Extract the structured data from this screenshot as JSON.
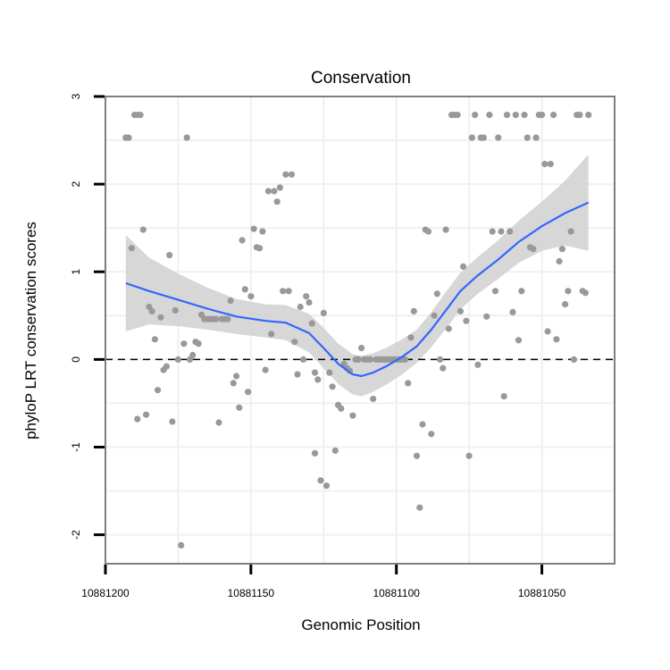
{
  "chart_data": {
    "type": "scatter",
    "title": "Conservation",
    "xlabel": "Genomic Position",
    "ylabel": "phyloP LRT conservation scores",
    "x_reversed": true,
    "xlim": [
      10881025,
      10881200
    ],
    "ylim": [
      -2.33,
      3.0
    ],
    "x_ticks": [
      10881200,
      10881150,
      10881100,
      10881050
    ],
    "x_tick_labels": [
      "10881200",
      "10881150",
      "10881100",
      "10881050"
    ],
    "y_ticks": [
      -2,
      -1,
      0,
      1,
      2,
      3
    ],
    "y_tick_labels": [
      "-2",
      "-1",
      "0",
      "1",
      "2",
      "3"
    ],
    "grid": true,
    "reference_line": {
      "y": 0,
      "style": "dashed"
    },
    "colors": {
      "points": "#999999",
      "smooth": "#3366ff",
      "band": "#d3d3d3",
      "frame": "#7f7f7f",
      "grid": "#f0f0f0"
    },
    "points": [
      {
        "x": 10881193,
        "y": 2.53
      },
      {
        "x": 10881192,
        "y": 2.53
      },
      {
        "x": 10881191,
        "y": 1.27
      },
      {
        "x": 10881190,
        "y": 2.79
      },
      {
        "x": 10881189,
        "y": 2.79
      },
      {
        "x": 10881189,
        "y": -0.68
      },
      {
        "x": 10881188,
        "y": 2.79
      },
      {
        "x": 10881187,
        "y": 1.48
      },
      {
        "x": 10881186,
        "y": -0.63
      },
      {
        "x": 10881185,
        "y": 0.6
      },
      {
        "x": 10881184,
        "y": 0.55
      },
      {
        "x": 10881183,
        "y": 0.23
      },
      {
        "x": 10881182,
        "y": -0.35
      },
      {
        "x": 10881181,
        "y": 0.48
      },
      {
        "x": 10881180,
        "y": -0.12
      },
      {
        "x": 10881179,
        "y": -0.08
      },
      {
        "x": 10881178,
        "y": 1.19
      },
      {
        "x": 10881177,
        "y": -0.71
      },
      {
        "x": 10881176,
        "y": 0.56
      },
      {
        "x": 10881175,
        "y": 0.0
      },
      {
        "x": 10881174,
        "y": -2.12
      },
      {
        "x": 10881173,
        "y": 0.18
      },
      {
        "x": 10881172,
        "y": 2.53
      },
      {
        "x": 10881171,
        "y": 0.0
      },
      {
        "x": 10881170,
        "y": 0.05
      },
      {
        "x": 10881169,
        "y": 0.2
      },
      {
        "x": 10881168,
        "y": 0.18
      },
      {
        "x": 10881167,
        "y": 0.51
      },
      {
        "x": 10881166,
        "y": 0.46
      },
      {
        "x": 10881165,
        "y": 0.46
      },
      {
        "x": 10881164,
        "y": 0.46
      },
      {
        "x": 10881163,
        "y": 0.46
      },
      {
        "x": 10881162,
        "y": 0.46
      },
      {
        "x": 10881161,
        "y": -0.72
      },
      {
        "x": 10881160,
        "y": 0.46
      },
      {
        "x": 10881159,
        "y": 0.46
      },
      {
        "x": 10881158,
        "y": 0.46
      },
      {
        "x": 10881157,
        "y": 0.67
      },
      {
        "x": 10881156,
        "y": -0.27
      },
      {
        "x": 10881155,
        "y": -0.19
      },
      {
        "x": 10881154,
        "y": -0.55
      },
      {
        "x": 10881153,
        "y": 1.36
      },
      {
        "x": 10881152,
        "y": 0.8
      },
      {
        "x": 10881151,
        "y": -0.37
      },
      {
        "x": 10881150,
        "y": 0.72
      },
      {
        "x": 10881149,
        "y": 1.49
      },
      {
        "x": 10881148,
        "y": 1.28
      },
      {
        "x": 10881147,
        "y": 1.27
      },
      {
        "x": 10881146,
        "y": 1.46
      },
      {
        "x": 10881145,
        "y": -0.12
      },
      {
        "x": 10881144,
        "y": 1.92
      },
      {
        "x": 10881143,
        "y": 0.29
      },
      {
        "x": 10881142,
        "y": 1.92
      },
      {
        "x": 10881141,
        "y": 1.8
      },
      {
        "x": 10881140,
        "y": 1.96
      },
      {
        "x": 10881139,
        "y": 0.78
      },
      {
        "x": 10881138,
        "y": 2.11
      },
      {
        "x": 10881137,
        "y": 0.78
      },
      {
        "x": 10881136,
        "y": 2.11
      },
      {
        "x": 10881135,
        "y": 0.2
      },
      {
        "x": 10881134,
        "y": -0.17
      },
      {
        "x": 10881133,
        "y": 0.6
      },
      {
        "x": 10881132,
        "y": 0.0
      },
      {
        "x": 10881131,
        "y": 0.72
      },
      {
        "x": 10881130,
        "y": 0.65
      },
      {
        "x": 10881129,
        "y": 0.41
      },
      {
        "x": 10881128,
        "y": -0.15
      },
      {
        "x": 10881128,
        "y": -1.07
      },
      {
        "x": 10881127,
        "y": -0.23
      },
      {
        "x": 10881126,
        "y": -1.38
      },
      {
        "x": 10881125,
        "y": 0.53
      },
      {
        "x": 10881124,
        "y": -1.44
      },
      {
        "x": 10881123,
        "y": -0.15
      },
      {
        "x": 10881122,
        "y": -0.31
      },
      {
        "x": 10881121,
        "y": -1.04
      },
      {
        "x": 10881120,
        "y": -0.52
      },
      {
        "x": 10881119,
        "y": -0.56
      },
      {
        "x": 10881118,
        "y": -0.05
      },
      {
        "x": 10881117,
        "y": -0.1
      },
      {
        "x": 10881116,
        "y": -0.13
      },
      {
        "x": 10881115,
        "y": -0.64
      },
      {
        "x": 10881114,
        "y": 0.0
      },
      {
        "x": 10881113,
        "y": 0.0
      },
      {
        "x": 10881112,
        "y": 0.13
      },
      {
        "x": 10881111,
        "y": 0.0
      },
      {
        "x": 10881110,
        "y": 0.0
      },
      {
        "x": 10881109,
        "y": 0.0
      },
      {
        "x": 10881108,
        "y": -0.45
      },
      {
        "x": 10881107,
        "y": 0.0
      },
      {
        "x": 10881106,
        "y": 0.0
      },
      {
        "x": 10881105,
        "y": 0.0
      },
      {
        "x": 10881104,
        "y": 0.0
      },
      {
        "x": 10881103,
        "y": 0.0
      },
      {
        "x": 10881102,
        "y": 0.0
      },
      {
        "x": 10881101,
        "y": 0.0
      },
      {
        "x": 10881100,
        "y": 0.0
      },
      {
        "x": 10881099,
        "y": 0.0
      },
      {
        "x": 10881098,
        "y": 0.0
      },
      {
        "x": 10881097,
        "y": 0.0
      },
      {
        "x": 10881096,
        "y": -0.27
      },
      {
        "x": 10881095,
        "y": 0.25
      },
      {
        "x": 10881094,
        "y": 0.55
      },
      {
        "x": 10881093,
        "y": -1.1
      },
      {
        "x": 10881092,
        "y": -1.69
      },
      {
        "x": 10881091,
        "y": -0.74
      },
      {
        "x": 10881090,
        "y": 1.48
      },
      {
        "x": 10881089,
        "y": 1.46
      },
      {
        "x": 10881088,
        "y": -0.85
      },
      {
        "x": 10881087,
        "y": 0.5
      },
      {
        "x": 10881086,
        "y": 0.75
      },
      {
        "x": 10881085,
        "y": 0.0
      },
      {
        "x": 10881084,
        "y": -0.1
      },
      {
        "x": 10881083,
        "y": 1.48
      },
      {
        "x": 10881082,
        "y": 0.35
      },
      {
        "x": 10881081,
        "y": 2.79
      },
      {
        "x": 10881080,
        "y": 2.79
      },
      {
        "x": 10881079,
        "y": 2.79
      },
      {
        "x": 10881078,
        "y": 0.55
      },
      {
        "x": 10881077,
        "y": 1.06
      },
      {
        "x": 10881076,
        "y": 0.44
      },
      {
        "x": 10881075,
        "y": -1.1
      },
      {
        "x": 10881074,
        "y": 2.53
      },
      {
        "x": 10881073,
        "y": 2.79
      },
      {
        "x": 10881072,
        "y": -0.06
      },
      {
        "x": 10881071,
        "y": 2.53
      },
      {
        "x": 10881070,
        "y": 2.53
      },
      {
        "x": 10881069,
        "y": 0.49
      },
      {
        "x": 10881068,
        "y": 2.79
      },
      {
        "x": 10881067,
        "y": 1.46
      },
      {
        "x": 10881066,
        "y": 0.78
      },
      {
        "x": 10881065,
        "y": 2.53
      },
      {
        "x": 10881064,
        "y": 1.46
      },
      {
        "x": 10881063,
        "y": -0.42
      },
      {
        "x": 10881062,
        "y": 2.79
      },
      {
        "x": 10881061,
        "y": 1.46
      },
      {
        "x": 10881060,
        "y": 0.54
      },
      {
        "x": 10881059,
        "y": 2.79
      },
      {
        "x": 10881058,
        "y": 0.22
      },
      {
        "x": 10881057,
        "y": 0.78
      },
      {
        "x": 10881056,
        "y": 2.79
      },
      {
        "x": 10881055,
        "y": 2.53
      },
      {
        "x": 10881054,
        "y": 1.28
      },
      {
        "x": 10881053,
        "y": 1.26
      },
      {
        "x": 10881052,
        "y": 2.53
      },
      {
        "x": 10881051,
        "y": 2.79
      },
      {
        "x": 10881050,
        "y": 2.79
      },
      {
        "x": 10881049,
        "y": 2.23
      },
      {
        "x": 10881048,
        "y": 0.32
      },
      {
        "x": 10881047,
        "y": 2.23
      },
      {
        "x": 10881046,
        "y": 2.79
      },
      {
        "x": 10881045,
        "y": 0.23
      },
      {
        "x": 10881044,
        "y": 1.12
      },
      {
        "x": 10881043,
        "y": 1.26
      },
      {
        "x": 10881042,
        "y": 0.63
      },
      {
        "x": 10881041,
        "y": 0.78
      },
      {
        "x": 10881040,
        "y": 1.46
      },
      {
        "x": 10881039,
        "y": 0.0
      },
      {
        "x": 10881038,
        "y": 2.79
      },
      {
        "x": 10881037,
        "y": 2.79
      },
      {
        "x": 10881036,
        "y": 0.78
      },
      {
        "x": 10881035,
        "y": 0.76
      },
      {
        "x": 10881034,
        "y": 2.79
      }
    ],
    "smooth": [
      {
        "x": 10881193,
        "y": 0.87,
        "lo": 0.32,
        "hi": 1.42
      },
      {
        "x": 10881185,
        "y": 0.78,
        "lo": 0.4,
        "hi": 1.16
      },
      {
        "x": 10881175,
        "y": 0.68,
        "lo": 0.38,
        "hi": 0.98
      },
      {
        "x": 10881165,
        "y": 0.58,
        "lo": 0.34,
        "hi": 0.82
      },
      {
        "x": 10881155,
        "y": 0.49,
        "lo": 0.29,
        "hi": 0.69
      },
      {
        "x": 10881145,
        "y": 0.44,
        "lo": 0.25,
        "hi": 0.63
      },
      {
        "x": 10881138,
        "y": 0.42,
        "lo": 0.22,
        "hi": 0.62
      },
      {
        "x": 10881130,
        "y": 0.3,
        "lo": 0.08,
        "hi": 0.52
      },
      {
        "x": 10881125,
        "y": 0.13,
        "lo": -0.1,
        "hi": 0.36
      },
      {
        "x": 10881120,
        "y": -0.05,
        "lo": -0.28,
        "hi": 0.18
      },
      {
        "x": 10881115,
        "y": -0.17,
        "lo": -0.4,
        "hi": 0.06
      },
      {
        "x": 10881112,
        "y": -0.19,
        "lo": -0.42,
        "hi": 0.04
      },
      {
        "x": 10881108,
        "y": -0.15,
        "lo": -0.37,
        "hi": 0.07
      },
      {
        "x": 10881103,
        "y": -0.07,
        "lo": -0.28,
        "hi": 0.14
      },
      {
        "x": 10881098,
        "y": 0.03,
        "lo": -0.17,
        "hi": 0.23
      },
      {
        "x": 10881093,
        "y": 0.15,
        "lo": -0.04,
        "hi": 0.34
      },
      {
        "x": 10881088,
        "y": 0.34,
        "lo": 0.14,
        "hi": 0.54
      },
      {
        "x": 10881083,
        "y": 0.56,
        "lo": 0.35,
        "hi": 0.77
      },
      {
        "x": 10881078,
        "y": 0.78,
        "lo": 0.57,
        "hi": 0.99
      },
      {
        "x": 10881072,
        "y": 0.96,
        "lo": 0.75,
        "hi": 1.17
      },
      {
        "x": 10881065,
        "y": 1.14,
        "lo": 0.92,
        "hi": 1.36
      },
      {
        "x": 10881058,
        "y": 1.34,
        "lo": 1.1,
        "hi": 1.58
      },
      {
        "x": 10881050,
        "y": 1.52,
        "lo": 1.24,
        "hi": 1.8
      },
      {
        "x": 10881042,
        "y": 1.67,
        "lo": 1.3,
        "hi": 2.04
      },
      {
        "x": 10881034,
        "y": 1.79,
        "lo": 1.24,
        "hi": 2.34
      }
    ]
  }
}
